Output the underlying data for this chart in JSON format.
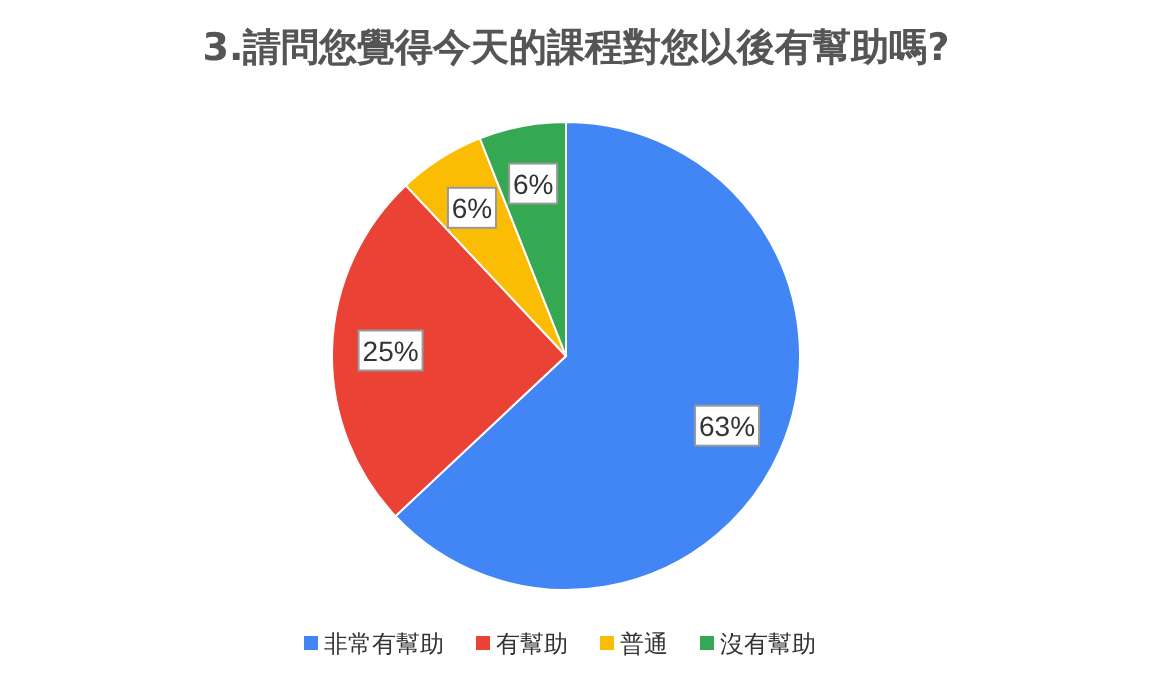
{
  "chart_data": {
    "type": "pie",
    "title": "3.請問您覺得今天的課程對您以後有幫助嗎?",
    "categories": [
      "非常有幫助",
      "有幫助",
      "普通",
      "沒有幫助"
    ],
    "values": [
      63,
      25,
      6,
      6
    ],
    "value_labels": [
      "63%",
      "25%",
      "6%",
      "6%"
    ],
    "colors": [
      "#4285f4",
      "#ea4335",
      "#fbbc04",
      "#34a853"
    ],
    "legend": "bottom"
  }
}
